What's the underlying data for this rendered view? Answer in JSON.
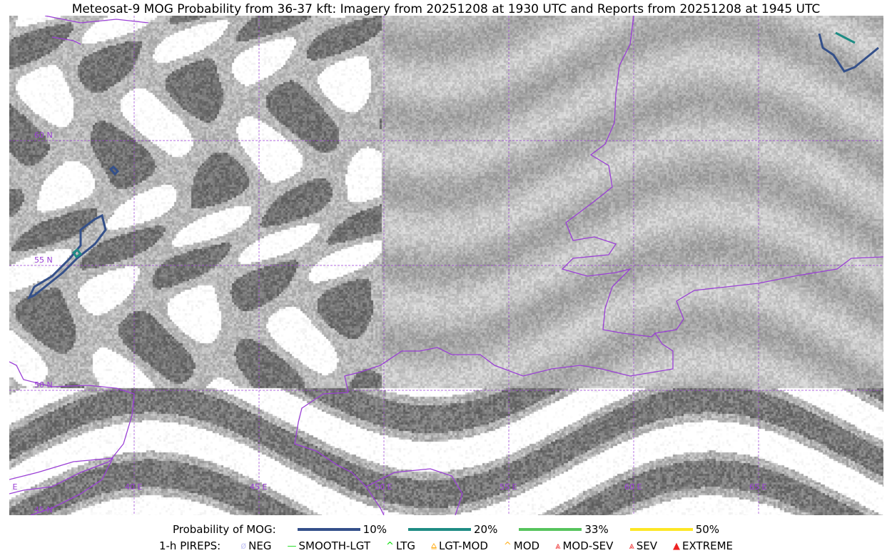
{
  "title": "Meteosat-9 MOG Probability from 36-37 kft: Imagery from 20251208 at 1930 UTC and Reports from 20251208 at 1945 UTC",
  "map": {
    "lat_labels": [
      "60 N",
      "55 N",
      "50 N",
      "45 N"
    ],
    "lon_labels": [
      "35 E",
      "40 E",
      "45 E",
      "50 E",
      "55 E",
      "60 E",
      "65 E"
    ],
    "border_color": "#9a3fd6",
    "grid_color": "#9a3fd6"
  },
  "legend": {
    "probability_label": "Probability of MOG:",
    "probability_items": [
      {
        "label": "10%",
        "color": "#34508a"
      },
      {
        "label": "20%",
        "color": "#1f8c84"
      },
      {
        "label": "33%",
        "color": "#56c45c"
      },
      {
        "label": "50%",
        "color": "#fde725"
      }
    ],
    "pireps_label": "1-h PIREPS:",
    "pireps_items": [
      {
        "label": "NEG",
        "icon": "neg-icon",
        "color": "#c8c8f5",
        "glyph": "ø"
      },
      {
        "label": "SMOOTH-LGT",
        "icon": "smooth-lgt-icon",
        "color": "#22dd22",
        "glyph": "—"
      },
      {
        "label": "LTG",
        "icon": "ltg-icon",
        "color": "#00dd00",
        "glyph": "^"
      },
      {
        "label": "LGT-MOD",
        "icon": "lgt-mod-icon",
        "color": "#ffb020",
        "glyph": "⩠"
      },
      {
        "label": "MOD",
        "icon": "mod-icon",
        "color": "#ffb020",
        "glyph": "^"
      },
      {
        "label": "MOD-SEV",
        "icon": "mod-sev-icon",
        "color": "#ee3333",
        "glyph": "⩓"
      },
      {
        "label": "SEV",
        "icon": "sev-icon",
        "color": "#ee3333",
        "glyph": "⩓"
      },
      {
        "label": "EXTREME",
        "icon": "extreme-icon",
        "color": "#ee2222",
        "glyph": "▲"
      }
    ]
  }
}
